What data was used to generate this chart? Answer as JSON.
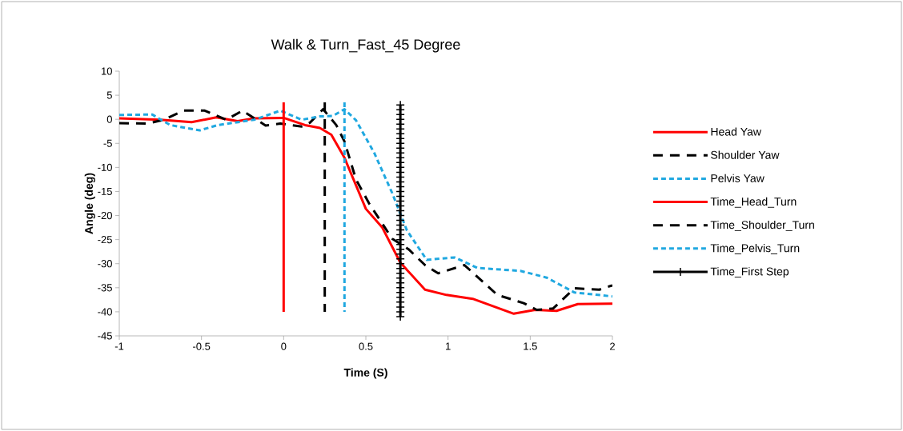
{
  "chart_data": {
    "type": "line",
    "title": "Walk & Turn_Fast_45 Degree",
    "xlabel": "Time (S)",
    "ylabel": "Angle (deg)",
    "xlim": [
      -1,
      2
    ],
    "xticks": [
      -1,
      -0.5,
      0,
      0.5,
      1,
      1.5,
      2
    ],
    "ylim": [
      -45,
      10
    ],
    "yticks": [
      -45,
      -40,
      -35,
      -30,
      -25,
      -20,
      -15,
      -10,
      -5,
      0,
      5,
      10
    ],
    "grid": false,
    "legend": "right",
    "series": [
      {
        "name": "Head Yaw",
        "color": "#ff0000",
        "line_style": "solid",
        "x": [
          -1,
          -0.75,
          -0.56,
          -0.41,
          -0.28,
          -0.18,
          0,
          0.13,
          0.22,
          0.29,
          0.37,
          0.5,
          0.6,
          0.71,
          0.86,
          0.99,
          1.15,
          1.4,
          1.53,
          1.66,
          1.79,
          2
        ],
        "values": [
          0.2,
          -0.1,
          -0.6,
          0.4,
          -0.4,
          0.2,
          0.3,
          -1.2,
          -1.8,
          -3.2,
          -8,
          -18.6,
          -22.5,
          -29.8,
          -35.4,
          -36.5,
          -37.3,
          -40.4,
          -39.6,
          -39.8,
          -38.4,
          -38.3
        ]
      },
      {
        "name": "Shoulder Yaw",
        "color": "#000000",
        "line_style": "dashed",
        "x": [
          -1,
          -0.83,
          -0.73,
          -0.61,
          -0.48,
          -0.35,
          -0.25,
          -0.11,
          -0.02,
          0.11,
          0.16,
          0.24,
          0.32,
          0.37,
          0.44,
          0.52,
          0.66,
          0.76,
          0.86,
          0.94,
          1.1,
          1.3,
          1.46,
          1.54,
          1.64,
          1.77,
          1.92,
          2
        ],
        "values": [
          -0.8,
          -0.9,
          -0.1,
          1.8,
          1.8,
          -0.1,
          1.8,
          -1.3,
          -0.9,
          -1.5,
          -0.7,
          2.1,
          -1.2,
          -4.6,
          -12.5,
          -17.5,
          -24.8,
          -27,
          -30.3,
          -32,
          -30.3,
          -36.5,
          -38.2,
          -39.6,
          -39.3,
          -35.1,
          -35.4,
          -34.5
        ]
      },
      {
        "name": "Pelvis Yaw",
        "color": "#20a8e0",
        "line_style": "dotted",
        "x": [
          -1,
          -0.8,
          -0.69,
          -0.51,
          -0.4,
          -0.18,
          -0.02,
          0.11,
          0.22,
          0.3,
          0.37,
          0.44,
          0.55,
          0.66,
          0.75,
          0.87,
          1.04,
          1.18,
          1.44,
          1.6,
          1.77,
          2
        ],
        "values": [
          0.9,
          1,
          -1.2,
          -2.3,
          -1.2,
          -0.1,
          1.8,
          -0.1,
          0.6,
          0.7,
          2.1,
          -0.2,
          -6.9,
          -15.3,
          -23.1,
          -29.2,
          -28.7,
          -30.9,
          -31.5,
          -32.9,
          -36,
          -36.8
        ]
      },
      {
        "name": "Time_Head_Turn",
        "color": "#ff0000",
        "line_style": "solid",
        "x": [
          0,
          0
        ],
        "values": [
          3.5,
          -40
        ]
      },
      {
        "name": "Time_Shoulder_Turn",
        "color": "#000000",
        "line_style": "dashed",
        "x": [
          0.25,
          0.25
        ],
        "values": [
          3.5,
          -40
        ]
      },
      {
        "name": "Time_Pelvis_Turn",
        "color": "#20a8e0",
        "line_style": "dotted",
        "x": [
          0.37,
          0.37
        ],
        "values": [
          3.5,
          -40
        ]
      },
      {
        "name": "Time_First Step",
        "color": "#000000",
        "line_style": "solid",
        "marker": "cross",
        "x": [
          0.71,
          0.71,
          0.71,
          0.71,
          0.71,
          0.71,
          0.71,
          0.71,
          0.71,
          0.71,
          0.71,
          0.71,
          0.71,
          0.71,
          0.71,
          0.71,
          0.71,
          0.71,
          0.71,
          0.71,
          0.71,
          0.71,
          0.71,
          0.71,
          0.71,
          0.71,
          0.71,
          0.71,
          0.71,
          0.71,
          0.71,
          0.71,
          0.71,
          0.71,
          0.71,
          0.71,
          0.71,
          0.71,
          0.71,
          0.71,
          0.71,
          0.71,
          0.71,
          0.71,
          0.71
        ],
        "values": [
          3,
          2,
          1,
          0,
          -1,
          -2,
          -3,
          -4,
          -5,
          -6,
          -7,
          -8,
          -9,
          -10,
          -11,
          -12,
          -13,
          -14,
          -15,
          -16,
          -17,
          -18,
          -19,
          -20,
          -21,
          -22,
          -23,
          -24,
          -25,
          -26,
          -27,
          -28,
          -29,
          -30,
          -31,
          -32,
          -33,
          -34,
          -35,
          -36,
          -37,
          -38,
          -39,
          -40,
          -41
        ]
      }
    ]
  }
}
